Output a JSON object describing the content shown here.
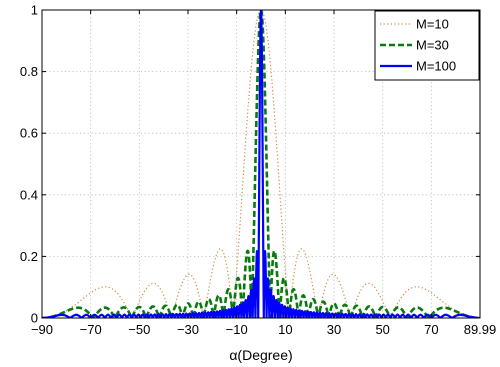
{
  "chart_data": {
    "type": "line",
    "title": "",
    "xlabel": "α(Degree)",
    "ylabel": "",
    "xlim": [
      -90,
      89.99
    ],
    "ylim": [
      0,
      1
    ],
    "xticks": [
      -90,
      -70,
      -50,
      -30,
      -10,
      10,
      30,
      50,
      70,
      89.99
    ],
    "xtick_labels": [
      "−90",
      "−70",
      "−50",
      "−30",
      "−10",
      "10",
      "30",
      "50",
      "70",
      "89.99"
    ],
    "yticks": [
      0,
      0.2,
      0.4,
      0.6,
      0.8,
      1
    ],
    "ytick_labels": [
      "0",
      "0.2",
      "0.4",
      "0.6",
      "0.8",
      "1"
    ],
    "grid": true,
    "legend_position": "top-right",
    "model": "normalized array beam pattern |sin(M·(π/2)·sin α)| / (M·|sin((π/2)·sin α)|), peak 1 at α = 0°",
    "series": [
      {
        "name": "M=10",
        "M": 10,
        "style": "dotted",
        "color": "#d08a3c",
        "width": 1.2
      },
      {
        "name": "M=30",
        "M": 30,
        "style": "dashed",
        "color": "#0a7a10",
        "width": 2.6
      },
      {
        "name": "M=100",
        "M": 100,
        "style": "solid",
        "color": "#0000ff",
        "width": 2.2
      }
    ]
  }
}
